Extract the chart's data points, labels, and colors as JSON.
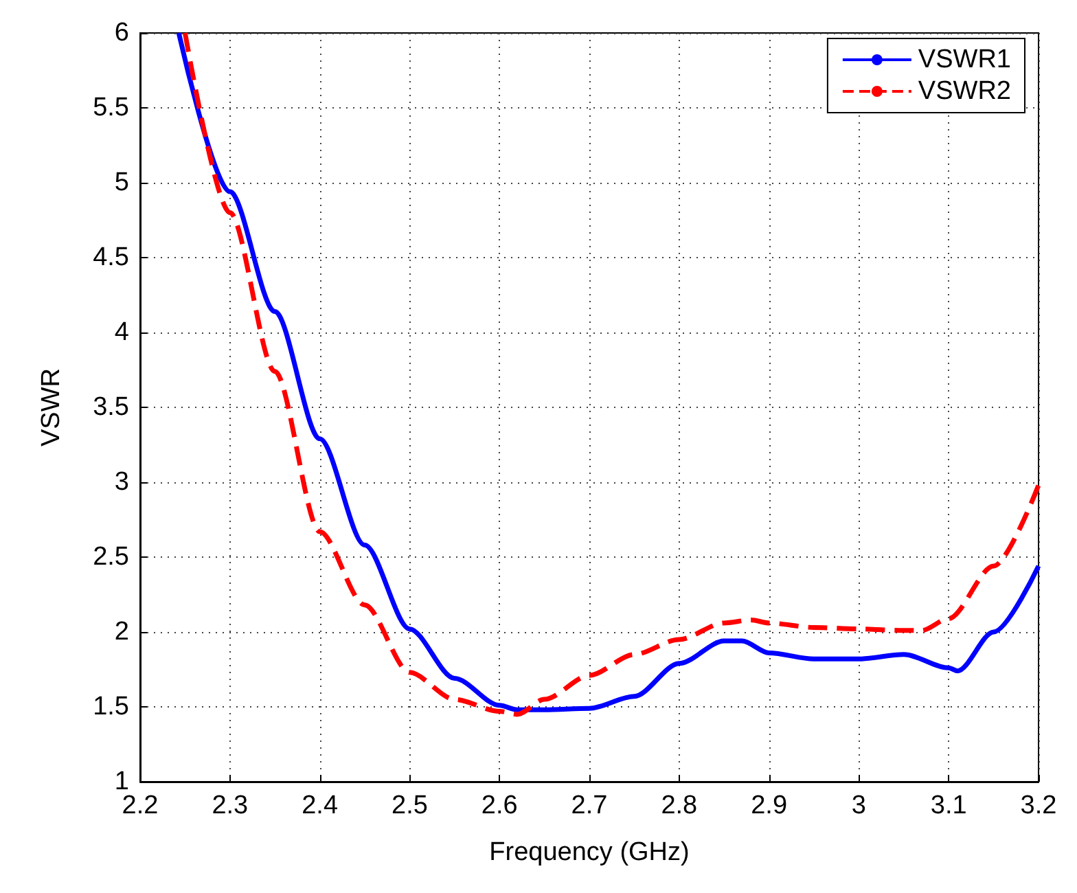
{
  "chart_data": {
    "type": "line",
    "xlabel": "Frequency (GHz)",
    "ylabel": "VSWR",
    "xlim": [
      2.2,
      3.2
    ],
    "xticks": [
      2.2,
      2.3,
      2.4,
      2.5,
      2.6,
      2.7,
      2.8,
      2.9,
      3,
      3.1,
      3.2
    ],
    "ylim": [
      1,
      6
    ],
    "yticks": [
      1,
      1.5,
      2,
      2.5,
      3,
      3.5,
      4,
      4.5,
      5,
      5.5,
      6
    ],
    "grid": true,
    "legend": "top right",
    "marker": "none",
    "series": [
      {
        "name": "VSWR1",
        "color": "#0000ff",
        "line_style": "solid",
        "x": [
          2.243,
          2.3,
          2.35,
          2.4,
          2.45,
          2.5,
          2.55,
          2.6,
          2.62,
          2.65,
          2.7,
          2.75,
          2.8,
          2.85,
          2.87,
          2.9,
          2.95,
          3.0,
          3.05,
          3.1,
          3.11,
          3.15,
          3.2
        ],
        "values": [
          6,
          4.94,
          4.14,
          3.29,
          2.58,
          2.02,
          1.69,
          1.51,
          1.48,
          1.48,
          1.49,
          1.57,
          1.79,
          1.94,
          1.94,
          1.86,
          1.82,
          1.82,
          1.85,
          1.76,
          1.74,
          2.0,
          2.44
        ]
      },
      {
        "name": "VSWR2",
        "color": "#ff0000",
        "line_style": "dashed",
        "x": [
          2.25,
          2.3,
          2.35,
          2.4,
          2.45,
          2.5,
          2.55,
          2.6,
          2.62,
          2.65,
          2.7,
          2.75,
          2.8,
          2.85,
          2.88,
          2.9,
          2.95,
          3.0,
          3.05,
          3.07,
          3.1,
          3.15,
          3.2
        ],
        "values": [
          6,
          4.8,
          3.74,
          2.67,
          2.18,
          1.73,
          1.55,
          1.47,
          1.45,
          1.55,
          1.71,
          1.85,
          1.95,
          2.06,
          2.08,
          2.06,
          2.03,
          2.02,
          2.01,
          2.01,
          2.09,
          2.44,
          2.98
        ]
      }
    ]
  }
}
